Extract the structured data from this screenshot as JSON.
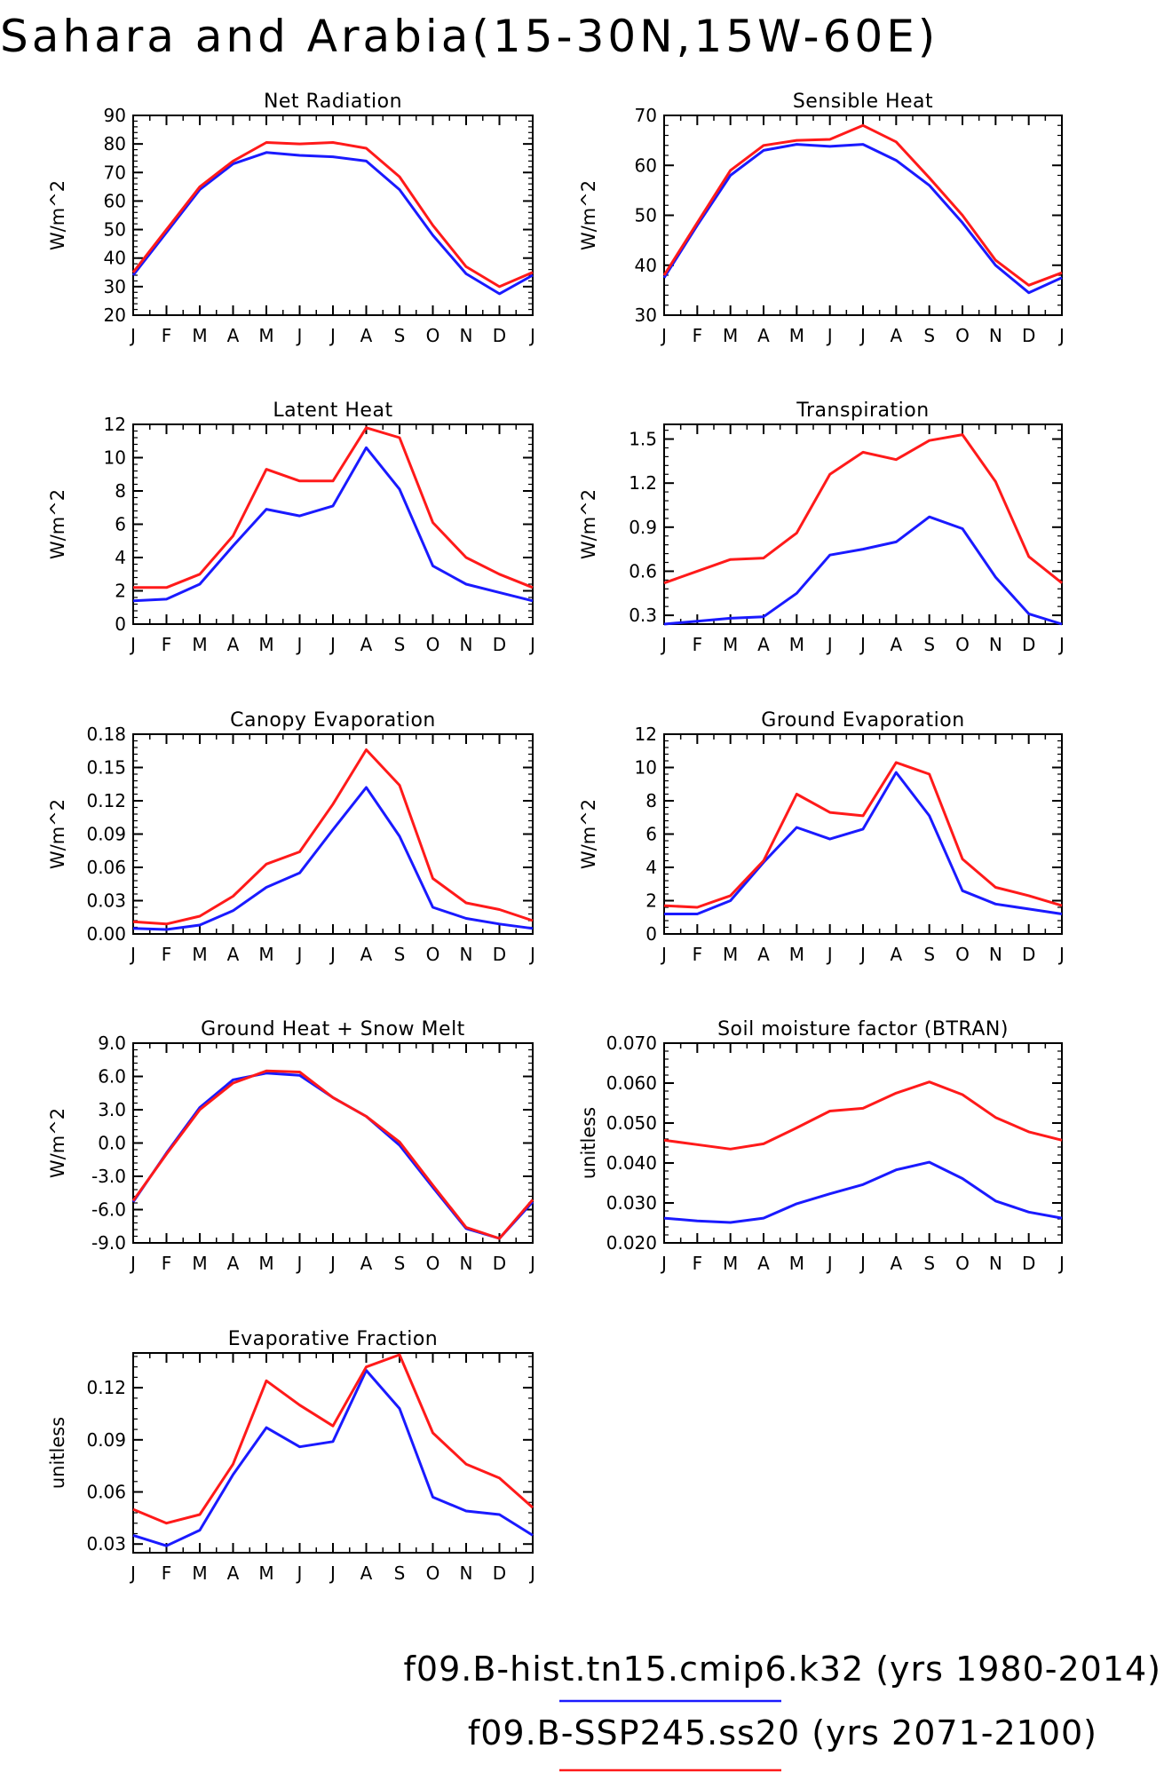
{
  "page": {
    "title": "Sahara and Arabia(15-30N,15W-60E)",
    "colors": {
      "hist": "#1a1aff",
      "ssp": "#ff1a1a",
      "axis": "#000000"
    }
  },
  "months": [
    "J",
    "F",
    "M",
    "A",
    "M",
    "J",
    "J",
    "A",
    "S",
    "O",
    "N",
    "D",
    "J"
  ],
  "legend": [
    {
      "label": "f09.B-hist.tn15.cmip6.k32 (yrs 1980-2014)",
      "color": "#1a1aff"
    },
    {
      "label": "f09.B-SSP245.ss20 (yrs 2071-2100)",
      "color": "#ff1a1a"
    }
  ],
  "chart_data": [
    {
      "type": "line",
      "title": "Net Radiation",
      "ylabel": "W/m^2",
      "ylim": [
        20,
        90
      ],
      "yticks": [
        "20",
        "30",
        "40",
        "50",
        "60",
        "70",
        "80",
        "90"
      ],
      "series": [
        {
          "values": [
            34,
            49,
            64,
            73,
            77,
            76,
            75.5,
            74,
            64,
            48,
            34.5,
            27.5,
            34
          ]
        },
        {
          "values": [
            35,
            50,
            65,
            74,
            80.5,
            80,
            80.5,
            78.5,
            68.5,
            51.5,
            37,
            30,
            35
          ]
        }
      ]
    },
    {
      "type": "line",
      "title": "Sensible Heat",
      "ylabel": "W/m^2",
      "ylim": [
        30,
        70
      ],
      "yticks": [
        "30",
        "40",
        "50",
        "60",
        "70"
      ],
      "series": [
        {
          "values": [
            37.5,
            48,
            58,
            63,
            64.2,
            63.8,
            64.2,
            61,
            56,
            48.5,
            40,
            34.5,
            37.5
          ]
        },
        {
          "values": [
            38,
            48.5,
            59,
            64,
            65,
            65.2,
            68,
            64.7,
            57.5,
            50,
            41,
            36,
            38.5
          ]
        }
      ]
    },
    {
      "type": "line",
      "title": "Latent Heat",
      "ylabel": "W/m^2",
      "ylim": [
        0,
        12
      ],
      "yticks": [
        "0",
        "2",
        "4",
        "6",
        "8",
        "10",
        "12"
      ],
      "series": [
        {
          "values": [
            1.4,
            1.5,
            2.4,
            4.7,
            6.9,
            6.5,
            7.1,
            10.6,
            8.1,
            3.5,
            2.4,
            1.9,
            1.4
          ]
        },
        {
          "values": [
            2.2,
            2.2,
            3.0,
            5.3,
            9.3,
            8.6,
            8.6,
            11.8,
            11.2,
            6.1,
            4.0,
            3.0,
            2.2
          ]
        }
      ]
    },
    {
      "type": "line",
      "title": "Transpiration",
      "ylabel": "W/m^2",
      "ylim": [
        0.24,
        1.6
      ],
      "yticks": [
        "0.3",
        "0.6",
        "0.9",
        "1.2",
        "1.5"
      ],
      "series": [
        {
          "values": [
            0.24,
            0.26,
            0.28,
            0.29,
            0.45,
            0.71,
            0.75,
            0.8,
            0.97,
            0.89,
            0.56,
            0.31,
            0.24
          ]
        },
        {
          "values": [
            0.52,
            0.6,
            0.68,
            0.69,
            0.86,
            1.26,
            1.41,
            1.36,
            1.49,
            1.53,
            1.21,
            0.7,
            0.52
          ]
        }
      ]
    },
    {
      "type": "line",
      "title": "Canopy Evaporation",
      "ylabel": "W/m^2",
      "ylim": [
        0,
        0.18
      ],
      "yticks": [
        "0.00",
        "0.03",
        "0.06",
        "0.09",
        "0.12",
        "0.15",
        "0.18"
      ],
      "series": [
        {
          "values": [
            0.005,
            0.004,
            0.008,
            0.021,
            0.042,
            0.055,
            0.094,
            0.132,
            0.088,
            0.024,
            0.014,
            0.009,
            0.005
          ]
        },
        {
          "values": [
            0.011,
            0.009,
            0.016,
            0.034,
            0.063,
            0.074,
            0.117,
            0.166,
            0.134,
            0.05,
            0.028,
            0.022,
            0.012
          ]
        }
      ]
    },
    {
      "type": "line",
      "title": "Ground Evaporation",
      "ylabel": "W/m^2",
      "ylim": [
        0,
        12
      ],
      "yticks": [
        "0",
        "2",
        "4",
        "6",
        "8",
        "10",
        "12"
      ],
      "series": [
        {
          "values": [
            1.2,
            1.2,
            2.0,
            4.3,
            6.4,
            5.7,
            6.3,
            9.7,
            7.1,
            2.6,
            1.8,
            1.5,
            1.2
          ]
        },
        {
          "values": [
            1.7,
            1.6,
            2.3,
            4.4,
            8.4,
            7.3,
            7.1,
            10.3,
            9.6,
            4.5,
            2.8,
            2.3,
            1.7
          ]
        }
      ]
    },
    {
      "type": "line",
      "title": "Ground Heat + Snow Melt",
      "ylabel": "W/m^2",
      "ylim": [
        -9,
        9
      ],
      "yticks": [
        "-9.0",
        "-6.0",
        "-3.0",
        "0.0",
        "3.0",
        "6.0",
        "9.0"
      ],
      "series": [
        {
          "values": [
            -5.3,
            -0.9,
            3.2,
            5.7,
            6.3,
            6.1,
            4.1,
            2.4,
            -0.2,
            -4.0,
            -7.7,
            -8.6,
            -5.3
          ]
        },
        {
          "values": [
            -5.2,
            -1.0,
            3.0,
            5.4,
            6.5,
            6.4,
            4.1,
            2.4,
            0.1,
            -3.8,
            -7.6,
            -8.6,
            -5.1
          ]
        }
      ]
    },
    {
      "type": "line",
      "title": "Soil moisture factor (BTRAN)",
      "ylabel": "unitless",
      "ylim": [
        0.02,
        0.07
      ],
      "yticks": [
        "0.020",
        "0.030",
        "0.040",
        "0.050",
        "0.060",
        "0.070"
      ],
      "series": [
        {
          "values": [
            0.0262,
            0.0255,
            0.0251,
            0.0262,
            0.0298,
            0.0323,
            0.0346,
            0.0383,
            0.0402,
            0.0361,
            0.0305,
            0.0277,
            0.0262
          ]
        },
        {
          "values": [
            0.0457,
            0.0446,
            0.0435,
            0.0448,
            0.0488,
            0.053,
            0.0537,
            0.0575,
            0.0603,
            0.0571,
            0.0514,
            0.0478,
            0.0457
          ]
        }
      ]
    },
    {
      "type": "line",
      "title": "Evaporative Fraction",
      "ylabel": "unitless",
      "ylim": [
        0.025,
        0.14
      ],
      "yticks": [
        "0.03",
        "0.06",
        "0.09",
        "0.12"
      ],
      "series": [
        {
          "values": [
            0.035,
            0.029,
            0.038,
            0.07,
            0.097,
            0.086,
            0.089,
            0.13,
            0.108,
            0.057,
            0.049,
            0.047,
            0.035
          ]
        },
        {
          "values": [
            0.05,
            0.042,
            0.047,
            0.076,
            0.124,
            0.11,
            0.098,
            0.132,
            0.139,
            0.094,
            0.076,
            0.068,
            0.051
          ]
        }
      ]
    }
  ]
}
